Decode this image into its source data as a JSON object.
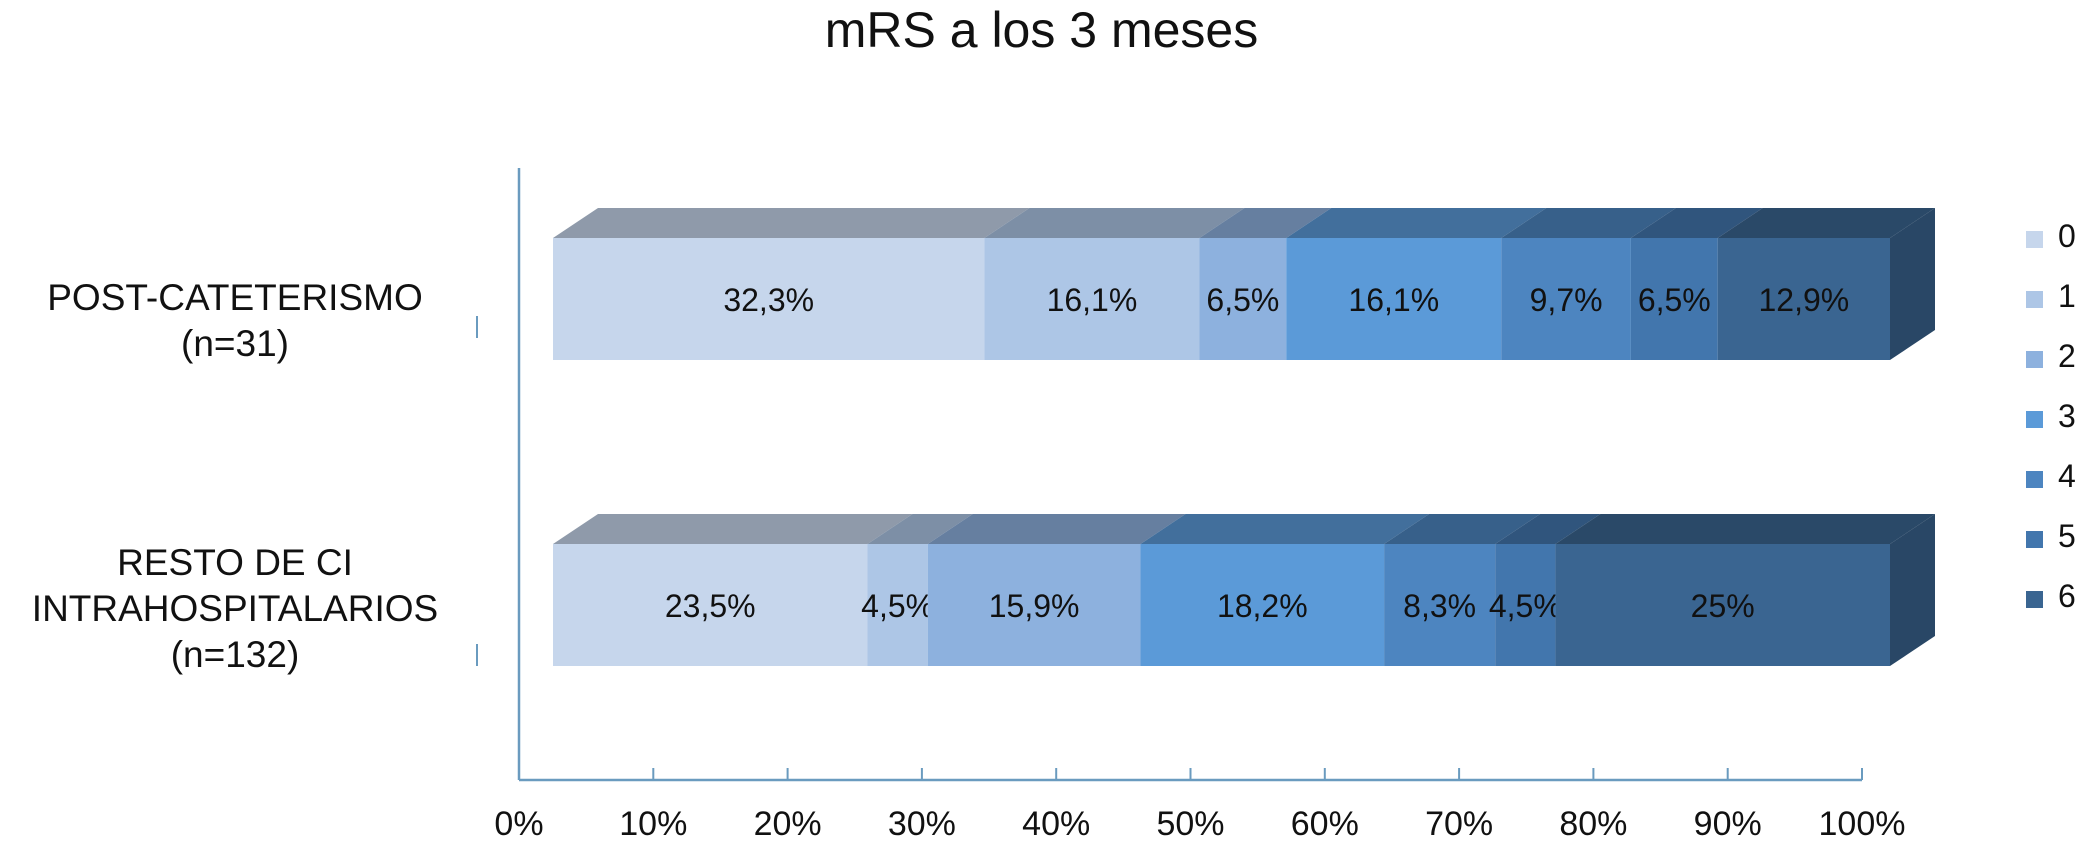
{
  "chart_data": {
    "type": "bar",
    "orientation": "horizontal",
    "stacked": "percent",
    "title": "mRS a los 3 meses",
    "categories": [
      "POST-CATETERISMO (n=31)",
      "RESTO DE CI INTRAHOSPITALARIOS (n=132)"
    ],
    "category_lines": [
      [
        "POST-CATETERISMO",
        "(n=31)"
      ],
      [
        "RESTO DE CI",
        "INTRAHOSPITALARIOS",
        "(n=132)"
      ]
    ],
    "series": [
      {
        "name": "0",
        "color": "#c6d6ec",
        "values": [
          32.3,
          23.5
        ],
        "labels": [
          "32,3%",
          "23,5%"
        ]
      },
      {
        "name": "1",
        "color": "#adc6e6",
        "values": [
          16.1,
          4.5
        ],
        "labels": [
          "16,1%",
          "4,5%"
        ]
      },
      {
        "name": "2",
        "color": "#8db1de",
        "values": [
          6.5,
          15.9
        ],
        "labels": [
          "6,5%",
          "15,9%"
        ]
      },
      {
        "name": "3",
        "color": "#5b9ad8",
        "values": [
          16.1,
          18.2
        ],
        "labels": [
          "16,1%",
          "18,2%"
        ]
      },
      {
        "name": "4",
        "color": "#4d85c0",
        "values": [
          9.7,
          8.3
        ],
        "labels": [
          "9,7%",
          "8,3%"
        ]
      },
      {
        "name": "5",
        "color": "#4276ad",
        "values": [
          6.5,
          4.5
        ],
        "labels": [
          "6,5%",
          "4,5%"
        ]
      },
      {
        "name": "6",
        "color": "#3a6591",
        "values": [
          12.9,
          25
        ],
        "labels": [
          "12,9%",
          "25%"
        ]
      }
    ],
    "xlim": [
      0,
      100
    ],
    "xticks": [
      "0%",
      "10%",
      "20%",
      "30%",
      "40%",
      "50%",
      "60%",
      "70%",
      "80%",
      "90%",
      "100%"
    ],
    "grid": false,
    "legend": "right",
    "style": "3d"
  }
}
